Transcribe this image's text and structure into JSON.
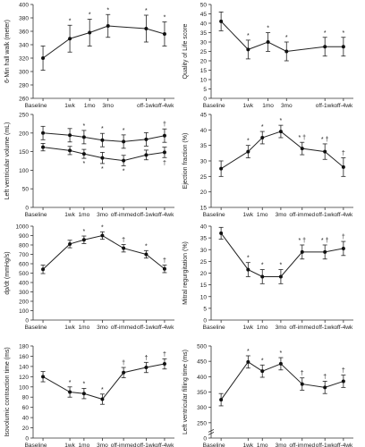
{
  "chart_data": [
    {
      "type": "line",
      "ylabel": "6-Min hall walk (meter)",
      "ylim": [
        260,
        400
      ],
      "yticks": [
        260,
        280,
        300,
        320,
        340,
        360,
        380,
        400
      ],
      "categories": [
        "Baseline",
        "1wk",
        "1mo",
        "3mo",
        "off-1wk",
        "off-4wk"
      ],
      "series": [
        {
          "values": [
            320,
            349,
            358,
            368,
            364,
            356
          ],
          "errors": [
            18,
            20,
            20,
            17,
            20,
            18
          ],
          "markers": [
            "",
            "*",
            "*",
            "*",
            "*",
            "*"
          ]
        }
      ]
    },
    {
      "type": "line",
      "ylabel": "Quality of Life score",
      "ylim": [
        0,
        50
      ],
      "yticks": [
        0,
        5,
        10,
        15,
        20,
        25,
        30,
        35,
        40,
        45,
        50
      ],
      "categories": [
        "Baseline",
        "1wk",
        "1mo",
        "3mo",
        "off-1wk",
        "off-4wk"
      ],
      "series": [
        {
          "values": [
            41,
            26,
            30,
            25,
            27.5,
            27.5
          ],
          "errors": [
            5,
            5,
            5,
            5,
            5,
            5
          ],
          "markers": [
            "",
            "*",
            "*",
            "*",
            "*",
            "*"
          ]
        }
      ]
    },
    {
      "type": "line",
      "ylabel": "Left ventricular volume (mL)",
      "ylim": [
        0,
        250
      ],
      "yticks": [
        0,
        50,
        100,
        150,
        200,
        250
      ],
      "categories": [
        "Baseline",
        "1wk",
        "1mo",
        "3mo",
        "off-immed",
        "off-1wk",
        "off-4wk"
      ],
      "series": [
        {
          "values": [
            200,
            194,
            189,
            181,
            177,
            183,
            193
          ],
          "errors": [
            18,
            18,
            18,
            18,
            18,
            18,
            18
          ],
          "markers": [
            "",
            "",
            "*",
            "*",
            "*",
            "",
            "†"
          ]
        },
        {
          "values": [
            162,
            153,
            144,
            133,
            126,
            141,
            148
          ],
          "errors": [
            10,
            11,
            12,
            15,
            14,
            13,
            14
          ],
          "markers": [
            "",
            "",
            "*",
            "*",
            "*",
            "",
            "†"
          ]
        }
      ]
    },
    {
      "type": "line",
      "ylabel": "Ejection fraction (%)",
      "ylim": [
        15,
        45
      ],
      "yticks": [
        15,
        20,
        25,
        30,
        35,
        40,
        45
      ],
      "categories": [
        "Baseline",
        "1wk",
        "1mo",
        "3mo",
        "off-immed",
        "off-1wk",
        "off-4wk"
      ],
      "series": [
        {
          "values": [
            27.5,
            33,
            37.5,
            39.5,
            34,
            33,
            28
          ],
          "errors": [
            2.5,
            2,
            2,
            2,
            2,
            2.5,
            3
          ],
          "markers": [
            "",
            "*",
            "*",
            "*",
            "* †",
            "* †",
            "†"
          ]
        }
      ]
    },
    {
      "type": "line",
      "ylabel": "dp/dt (mmHg/s)",
      "ylim": [
        0,
        1000
      ],
      "yticks": [
        0,
        100,
        200,
        300,
        400,
        500,
        600,
        700,
        800,
        900,
        1000
      ],
      "categories": [
        "Baseline",
        "1wk",
        "1mo",
        "3mo",
        "off-immed",
        "off-1wk",
        "off-4wk"
      ],
      "series": [
        {
          "values": [
            540,
            810,
            855,
            900,
            765,
            700,
            545
          ],
          "errors": [
            45,
            40,
            40,
            40,
            40,
            40,
            40
          ],
          "markers": [
            "",
            "",
            "*",
            "*",
            "†",
            "*",
            "†"
          ]
        }
      ]
    },
    {
      "type": "line",
      "ylabel": "Mitral regurgitation (%)",
      "ylim": [
        0,
        40
      ],
      "yticks": [
        0,
        5,
        10,
        15,
        20,
        25,
        30,
        35,
        40
      ],
      "categories": [
        "Baseline",
        "1wk",
        "1mo",
        "3mo",
        "off-immed",
        "off-1wk",
        "off-4wk"
      ],
      "series": [
        {
          "values": [
            37,
            21.5,
            18.5,
            18.5,
            29,
            29,
            30.5
          ],
          "errors": [
            2.5,
            3,
            3,
            3,
            3,
            3,
            3
          ],
          "markers": [
            "",
            "*",
            "*",
            "*",
            "* †",
            "* †",
            "†"
          ]
        }
      ]
    },
    {
      "type": "line",
      "ylabel": "Isovolumic contraction time (ms)",
      "ylim": [
        0,
        180
      ],
      "yticks": [
        0,
        20,
        40,
        60,
        80,
        100,
        120,
        140,
        160,
        180
      ],
      "categories": [
        "Baseline",
        "1wk",
        "1mo",
        "3mo",
        "off-immed",
        "off-1wk",
        "off-4wk"
      ],
      "series": [
        {
          "values": [
            120,
            90,
            87,
            76,
            128,
            138,
            145
          ],
          "errors": [
            10,
            10,
            10,
            10,
            10,
            10,
            10
          ],
          "markers": [
            "",
            "*",
            "*",
            "*",
            "†",
            "†",
            "†"
          ]
        }
      ]
    },
    {
      "type": "line",
      "ylabel": "Left ventricular filling time (ms)",
      "ylim": [
        0,
        500
      ],
      "yticks": [
        0,
        250,
        300,
        350,
        400,
        450,
        500
      ],
      "categories": [
        "Baseline",
        "1wk",
        "1mo",
        "3mo",
        "off-immed",
        "off-1wk",
        "off-4wk"
      ],
      "series": [
        {
          "values": [
            325,
            448,
            418,
            442,
            376,
            365,
            385
          ],
          "errors": [
            20,
            20,
            20,
            20,
            20,
            20,
            20
          ],
          "markers": [
            "",
            "*",
            "*",
            "*",
            "†",
            "†",
            "†"
          ]
        }
      ]
    }
  ]
}
